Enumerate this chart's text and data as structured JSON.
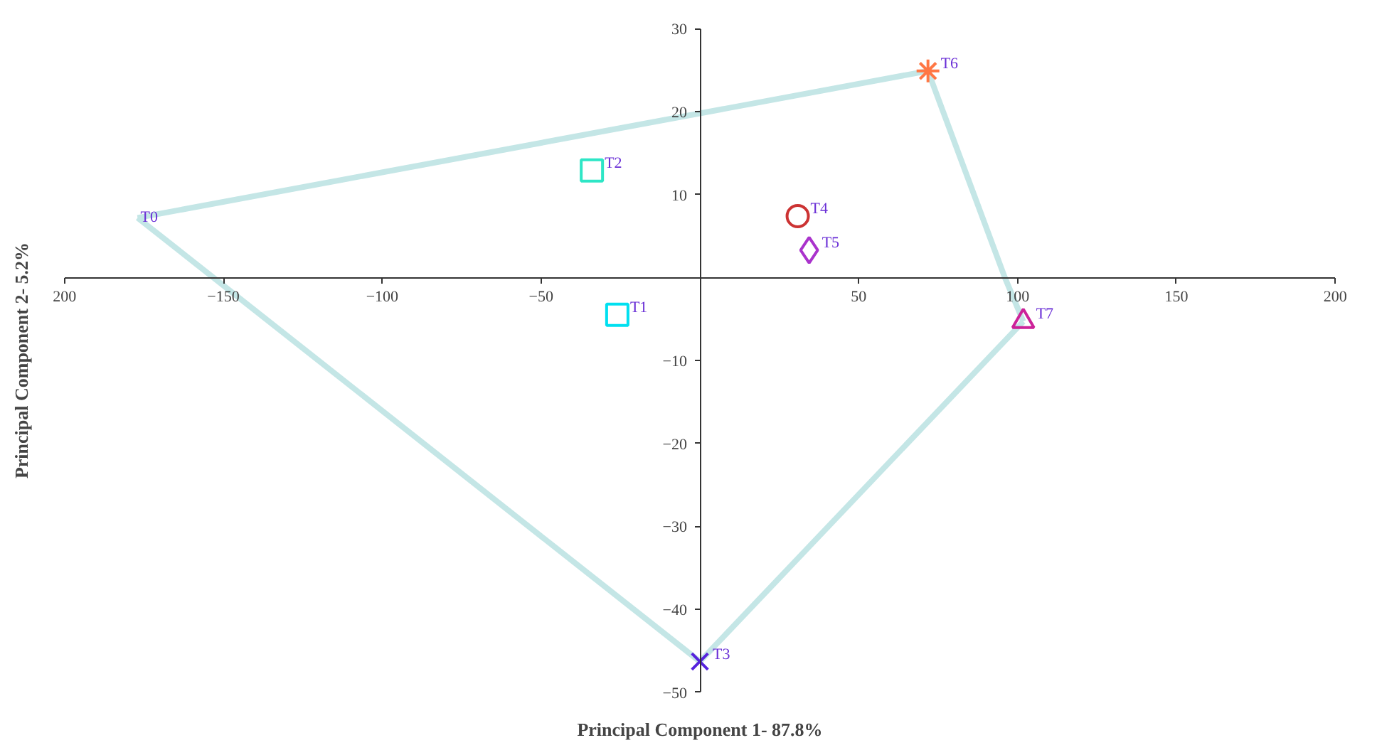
{
  "chart_data": {
    "type": "scatter",
    "xlabel": "Principal Component 1- 87.8%",
    "ylabel": "Principal Component 2- 5.2%",
    "xlim": [
      -200,
      200
    ],
    "ylim": [
      -50,
      30
    ],
    "xticks": [
      {
        "value": -200,
        "label": "200"
      },
      -150,
      -100,
      -50,
      50,
      100,
      150,
      {
        "value": 200,
        "label": "200"
      }
    ],
    "yticks": [
      -50,
      -40,
      -30,
      -20,
      -10,
      10,
      20,
      30
    ],
    "grid": false,
    "legend": false,
    "annotations": [
      {
        "text": "T0",
        "x": -177,
        "y": 7.2
      }
    ],
    "series": [
      {
        "type": "line",
        "color": "#c4e6e6",
        "marker": "none",
        "x": [
          -177,
          71.8
        ],
        "values": [
          7.2,
          24.9
        ]
      },
      {
        "type": "line",
        "color": "#c4e6e6",
        "marker": "none",
        "x": [
          71.8,
          96,
          101.8
        ],
        "values": [
          24.9,
          0,
          -5.3
        ]
      },
      {
        "type": "line",
        "color": "#c4e6e6",
        "marker": "none",
        "x": [
          0,
          101.8
        ],
        "values": [
          -46.3,
          -5.3
        ]
      },
      {
        "type": "line",
        "color": "#c4e6e6",
        "marker": "none",
        "x": [
          -177,
          0
        ],
        "values": [
          7.2,
          -46.3
        ]
      },
      {
        "name": "T1",
        "color": "#00e0f0",
        "marker": "square",
        "x": [
          -26
        ],
        "values": [
          -4.5
        ]
      },
      {
        "name": "T2",
        "color": "#2ee6c6",
        "marker": "square",
        "x": [
          -34
        ],
        "values": [
          12.9
        ]
      },
      {
        "name": "T3",
        "color": "#5522dd",
        "marker": "cross",
        "x": [
          0
        ],
        "values": [
          -46.3
        ]
      },
      {
        "name": "T4",
        "color": "#cc3333",
        "marker": "circle",
        "x": [
          30.8
        ],
        "values": [
          7.4
        ]
      },
      {
        "name": "T5",
        "color": "#aa33cc",
        "marker": "diamond",
        "x": [
          34.4
        ],
        "values": [
          3.3
        ]
      },
      {
        "name": "T6",
        "color": "#ff7744",
        "marker": "cross",
        "x": [
          71.8
        ],
        "values": [
          24.9
        ]
      },
      {
        "name": "T7",
        "color": "#cc2299",
        "marker": "triangle",
        "x": [
          101.8
        ],
        "values": [
          -5.3
        ]
      }
    ]
  }
}
